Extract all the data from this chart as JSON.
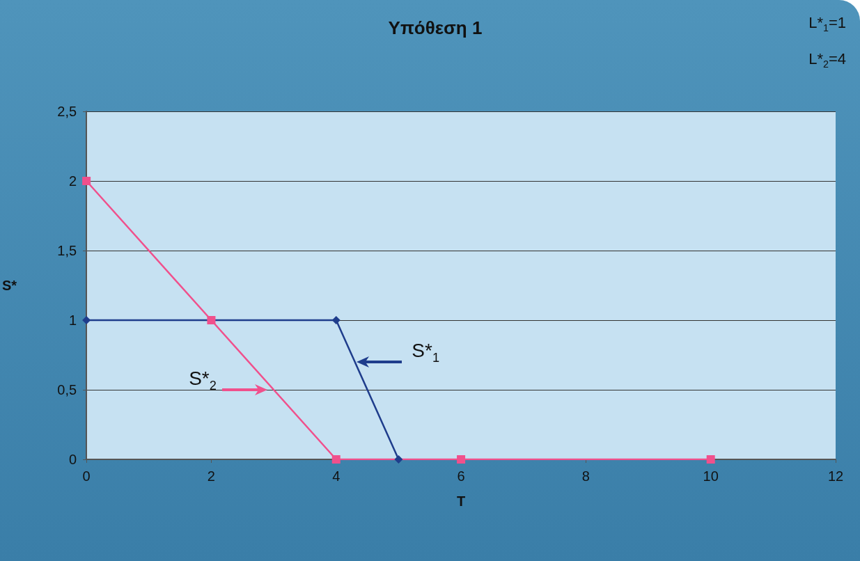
{
  "chart_data": {
    "type": "line",
    "title": "Υπόθεση 1",
    "xlabel": "T",
    "ylabel": "S*",
    "annotations": [
      "L*$_{1}$=1",
      "L*$_{2}$=4"
    ],
    "series": [
      {
        "name": "S*$_{1}$",
        "color": "#1f3d8c",
        "x": [
          0,
          4,
          5
        ],
        "values": [
          1,
          1,
          0
        ],
        "marker": "diamond"
      },
      {
        "name": "S*$_{2}$",
        "color": "#f0508c",
        "x": [
          0,
          2,
          4,
          6,
          10
        ],
        "values": [
          2,
          1,
          0,
          0,
          0
        ],
        "marker": "square"
      }
    ],
    "xlim": [
      0,
      12
    ],
    "xticks": [
      0,
      2,
      4,
      6,
      8,
      10,
      12
    ],
    "ylim": [
      0,
      2.5
    ],
    "yticks": [
      0,
      {
        "value": 0.5,
        "label": "0,5"
      },
      1,
      {
        "value": 1.5,
        "label": "1,5"
      },
      2,
      {
        "value": 2.5,
        "label": "2,5"
      }
    ],
    "grid": "y",
    "line_style": "solid"
  }
}
